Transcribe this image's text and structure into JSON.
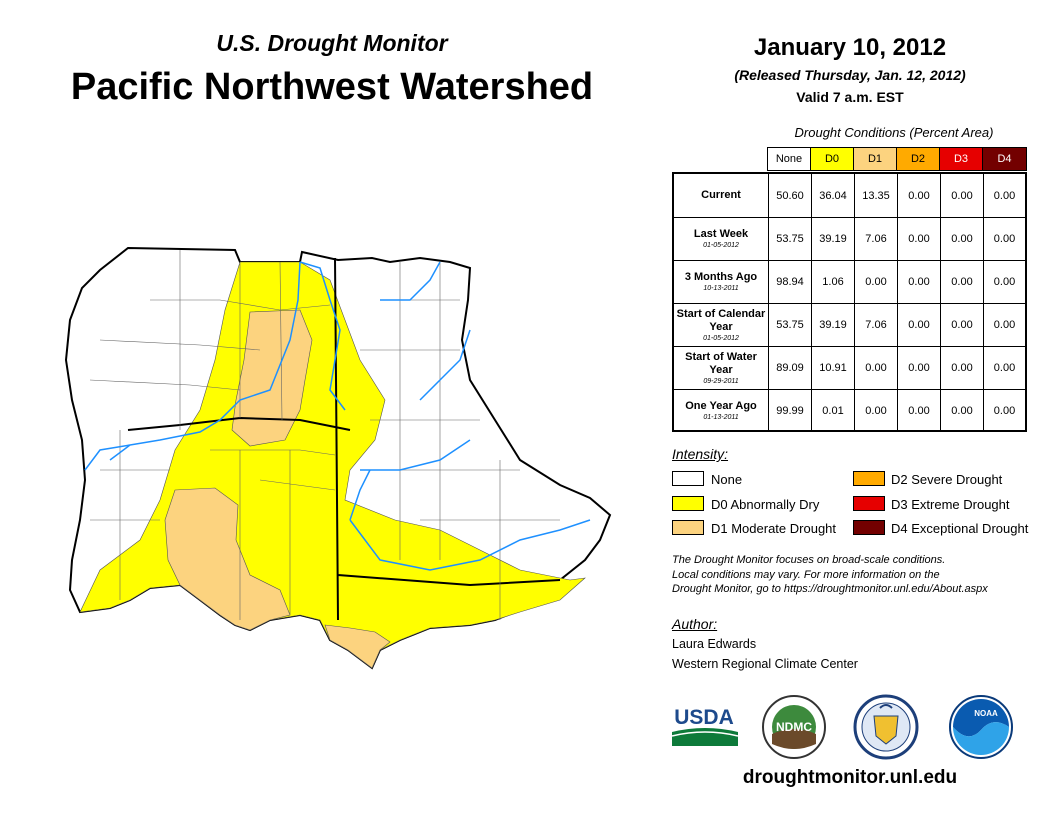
{
  "header": {
    "subtitle": "U.S. Drought Monitor",
    "title": "Pacific Northwest Watershed",
    "date": "January 10, 2012",
    "released": "(Released Thursday, Jan. 12, 2012)",
    "valid": "Valid 7 a.m. EST"
  },
  "table": {
    "title": "Drought Conditions (Percent Area)",
    "columns": [
      "None",
      "D0",
      "D1",
      "D2",
      "D3",
      "D4"
    ],
    "column_colors": [
      "#ffffff",
      "#ffff00",
      "#fcd37f",
      "#ffaa00",
      "#e60000",
      "#730000"
    ],
    "rows": [
      {
        "label": "Current",
        "date": "",
        "values": [
          "50.60",
          "36.04",
          "13.35",
          "0.00",
          "0.00",
          "0.00"
        ]
      },
      {
        "label": "Last Week",
        "date": "01-05-2012",
        "values": [
          "53.75",
          "39.19",
          "7.06",
          "0.00",
          "0.00",
          "0.00"
        ]
      },
      {
        "label": "3 Months Ago",
        "date": "10-13-2011",
        "values": [
          "98.94",
          "1.06",
          "0.00",
          "0.00",
          "0.00",
          "0.00"
        ]
      },
      {
        "label": "Start of Calendar Year",
        "date": "01-05-2012",
        "values": [
          "53.75",
          "39.19",
          "7.06",
          "0.00",
          "0.00",
          "0.00"
        ]
      },
      {
        "label": "Start of Water Year",
        "date": "09-29-2011",
        "values": [
          "89.09",
          "10.91",
          "0.00",
          "0.00",
          "0.00",
          "0.00"
        ]
      },
      {
        "label": "One Year Ago",
        "date": "01-13-2011",
        "values": [
          "99.99",
          "0.01",
          "0.00",
          "0.00",
          "0.00",
          "0.00"
        ]
      }
    ]
  },
  "legend": {
    "title": "Intensity:",
    "items": [
      {
        "label": "None",
        "color": "#ffffff"
      },
      {
        "label": "D0 Abnormally Dry",
        "color": "#ffff00"
      },
      {
        "label": "D1 Moderate Drought",
        "color": "#fcd37f"
      },
      {
        "label": "D2 Severe Drought",
        "color": "#ffaa00"
      },
      {
        "label": "D3 Extreme Drought",
        "color": "#e60000"
      },
      {
        "label": "D4 Exceptional Drought",
        "color": "#730000"
      }
    ]
  },
  "note": {
    "line1": "The Drought Monitor focuses on broad-scale conditions.",
    "line2": "Local conditions may vary. For more information on the",
    "line3": "Drought Monitor, go to https://droughtmonitor.unl.edu/About.aspx"
  },
  "author": {
    "title": "Author:",
    "name": "Laura Edwards",
    "org": "Western Regional Climate Center"
  },
  "logos": {
    "usda": "USDA",
    "ndmc": "NDMC",
    "noaa": "NOAA"
  },
  "footer": {
    "url": "droughtmonitor.unl.edu"
  },
  "map": {
    "fill_none": "#ffffff",
    "fill_d0": "#ffff00",
    "fill_d1": "#fcd37f",
    "river_color": "#1e90ff"
  }
}
